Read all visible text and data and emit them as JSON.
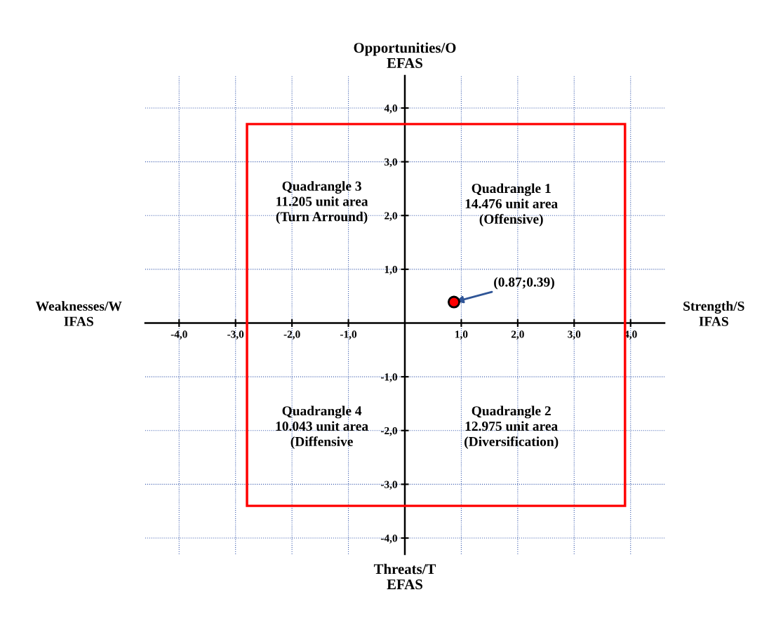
{
  "chart_data": {
    "type": "scatter",
    "ylabel": "Opportunities/O\nEFAS",
    "xlabel": "Threats/T\nEFAS",
    "xlim": [
      -4.6,
      4.6
    ],
    "ylim": [
      -4.3,
      4.6
    ],
    "xticks": [
      {
        "value": -4,
        "label": "-4,0"
      },
      {
        "value": -3,
        "label": "-3,0"
      },
      {
        "value": -2,
        "label": "-2,0"
      },
      {
        "value": -1,
        "label": "-1,0"
      },
      {
        "value": 1,
        "label": "1,0"
      },
      {
        "value": 2,
        "label": "2,0"
      },
      {
        "value": 3,
        "label": "3,0"
      },
      {
        "value": 4,
        "label": "4,0"
      }
    ],
    "yticks": [
      {
        "value": -4,
        "label": "-4,0"
      },
      {
        "value": -3,
        "label": "-3,0"
      },
      {
        "value": -2,
        "label": "-2,0"
      },
      {
        "value": -1,
        "label": "-1,0"
      },
      {
        "value": 1,
        "label": "1,0"
      },
      {
        "value": 2,
        "label": "2,0"
      },
      {
        "value": 3,
        "label": "3,0"
      },
      {
        "value": 4,
        "label": "4,0"
      }
    ],
    "grid": true,
    "marker": "circle",
    "series": [
      {
        "color": "#ff0000",
        "x": [
          0.87
        ],
        "values": [
          0.39
        ]
      }
    ],
    "annotations": [
      {
        "text": "(0.87;0.39)",
        "x": 0.87,
        "y": 0.39
      },
      "Weaknesses/W\nIFAS",
      "Strength/S\nIFAS",
      "Quadrangle 1\n14.476 unit area\n(Offensive)",
      "Quadrangle 2\n12.975 unit area\n(Diversification)",
      "Quadrangle 3\n11.205 unit area\n(Turn Arround)",
      "Quadrangle 4\n10.043 unit area\n(Diffensive"
    ]
  }
}
